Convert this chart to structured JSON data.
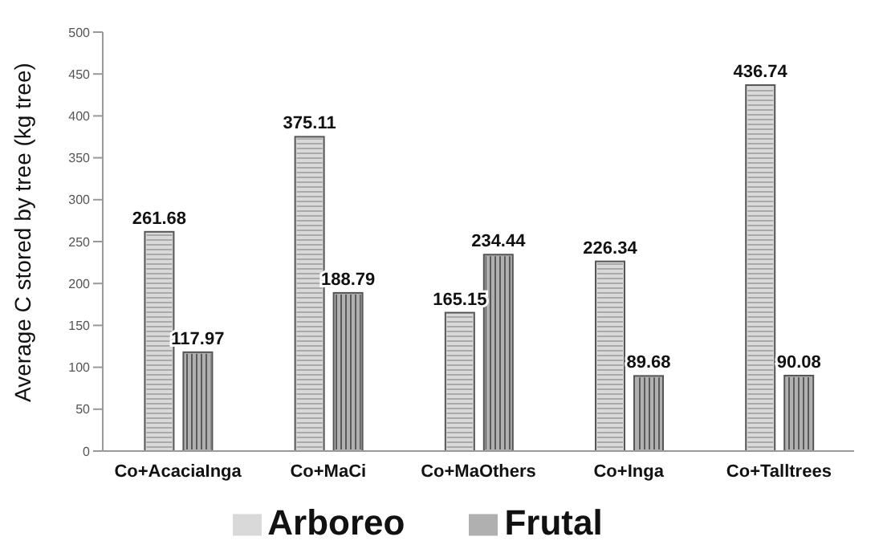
{
  "chart_data": {
    "type": "bar",
    "ylabel": "Average C stored by tree (kg tree)",
    "categories": [
      "Co+AcaciaInga",
      "Co+MaCi",
      "Co+MaOthers",
      "Co+Inga",
      "Co+Talltrees"
    ],
    "series": [
      {
        "name": "Arboreo",
        "color": "#d9d9d9",
        "values": [
          261.68,
          375.11,
          165.15,
          226.34,
          436.74
        ]
      },
      {
        "name": "Frutal",
        "color": "#b0b0b0",
        "values": [
          117.97,
          188.79,
          234.44,
          89.68,
          90.08
        ]
      }
    ],
    "ylim": [
      0,
      500
    ],
    "yticks": [
      0,
      50,
      100,
      150,
      200,
      250,
      300,
      350,
      400,
      450,
      500
    ],
    "grid": false,
    "legend": "bottom",
    "data_labels": true
  }
}
